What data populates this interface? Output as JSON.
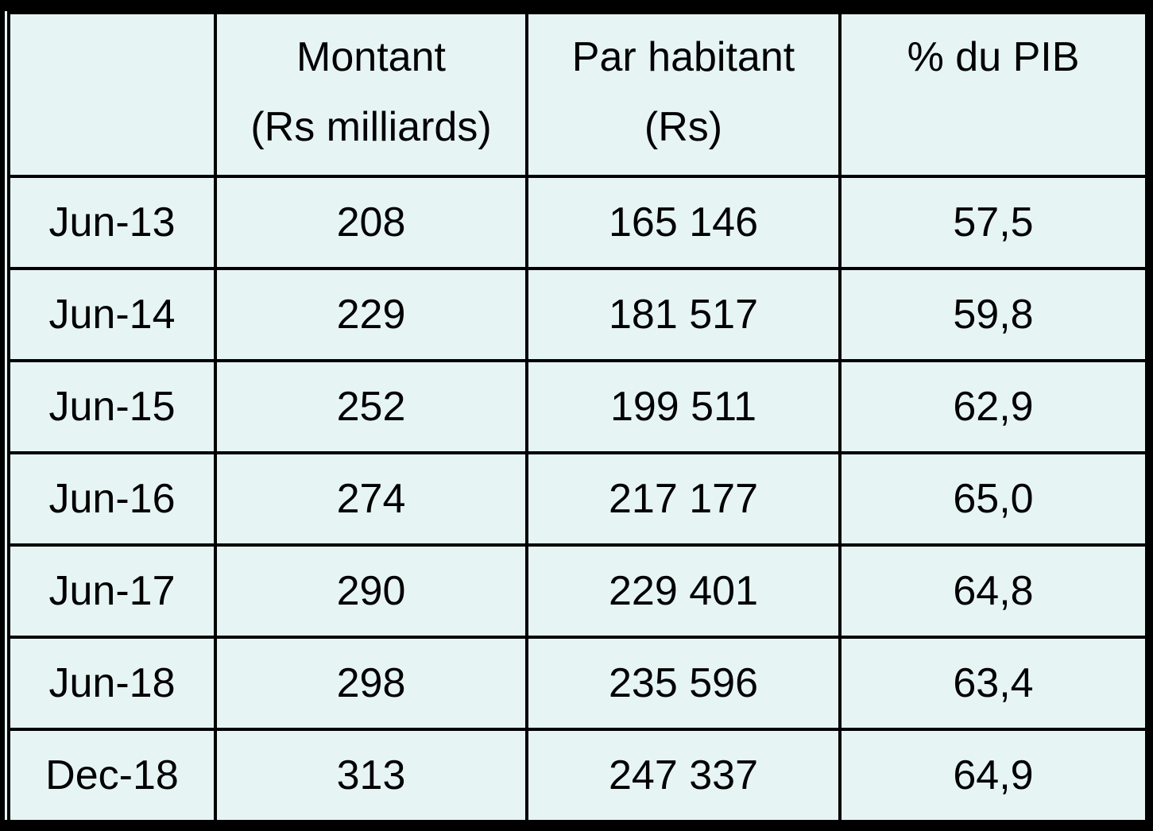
{
  "chart_data": {
    "type": "table",
    "columns": [
      "",
      "Montant (Rs milliards)",
      "Par habitant (Rs)",
      "% du PIB"
    ],
    "headers": [
      {
        "line1": "",
        "line2": ""
      },
      {
        "line1": "Montant",
        "line2": "(Rs milliards)"
      },
      {
        "line1": "Par habitant",
        "line2": "(Rs)"
      },
      {
        "line1": "% du PIB",
        "line2": ""
      }
    ],
    "rows": [
      {
        "period": "Jun-13",
        "montant": "208",
        "par_habitant": "165 146",
        "pct_pib": "57,5"
      },
      {
        "period": "Jun-14",
        "montant": "229",
        "par_habitant": "181 517",
        "pct_pib": "59,8"
      },
      {
        "period": "Jun-15",
        "montant": "252",
        "par_habitant": "199 511",
        "pct_pib": "62,9"
      },
      {
        "period": "Jun-16",
        "montant": "274",
        "par_habitant": "217 177",
        "pct_pib": "65,0"
      },
      {
        "period": "Jun-17",
        "montant": "290",
        "par_habitant": "229 401",
        "pct_pib": "64,8"
      },
      {
        "period": "Jun-18",
        "montant": "298",
        "par_habitant": "235 596",
        "pct_pib": "63,4"
      },
      {
        "period": "Dec-18",
        "montant": "313",
        "par_habitant": "247 337",
        "pct_pib": "64,9"
      }
    ]
  },
  "colors": {
    "cell_background": "#e6f4f4",
    "border": "#000000",
    "text": "#000000"
  }
}
